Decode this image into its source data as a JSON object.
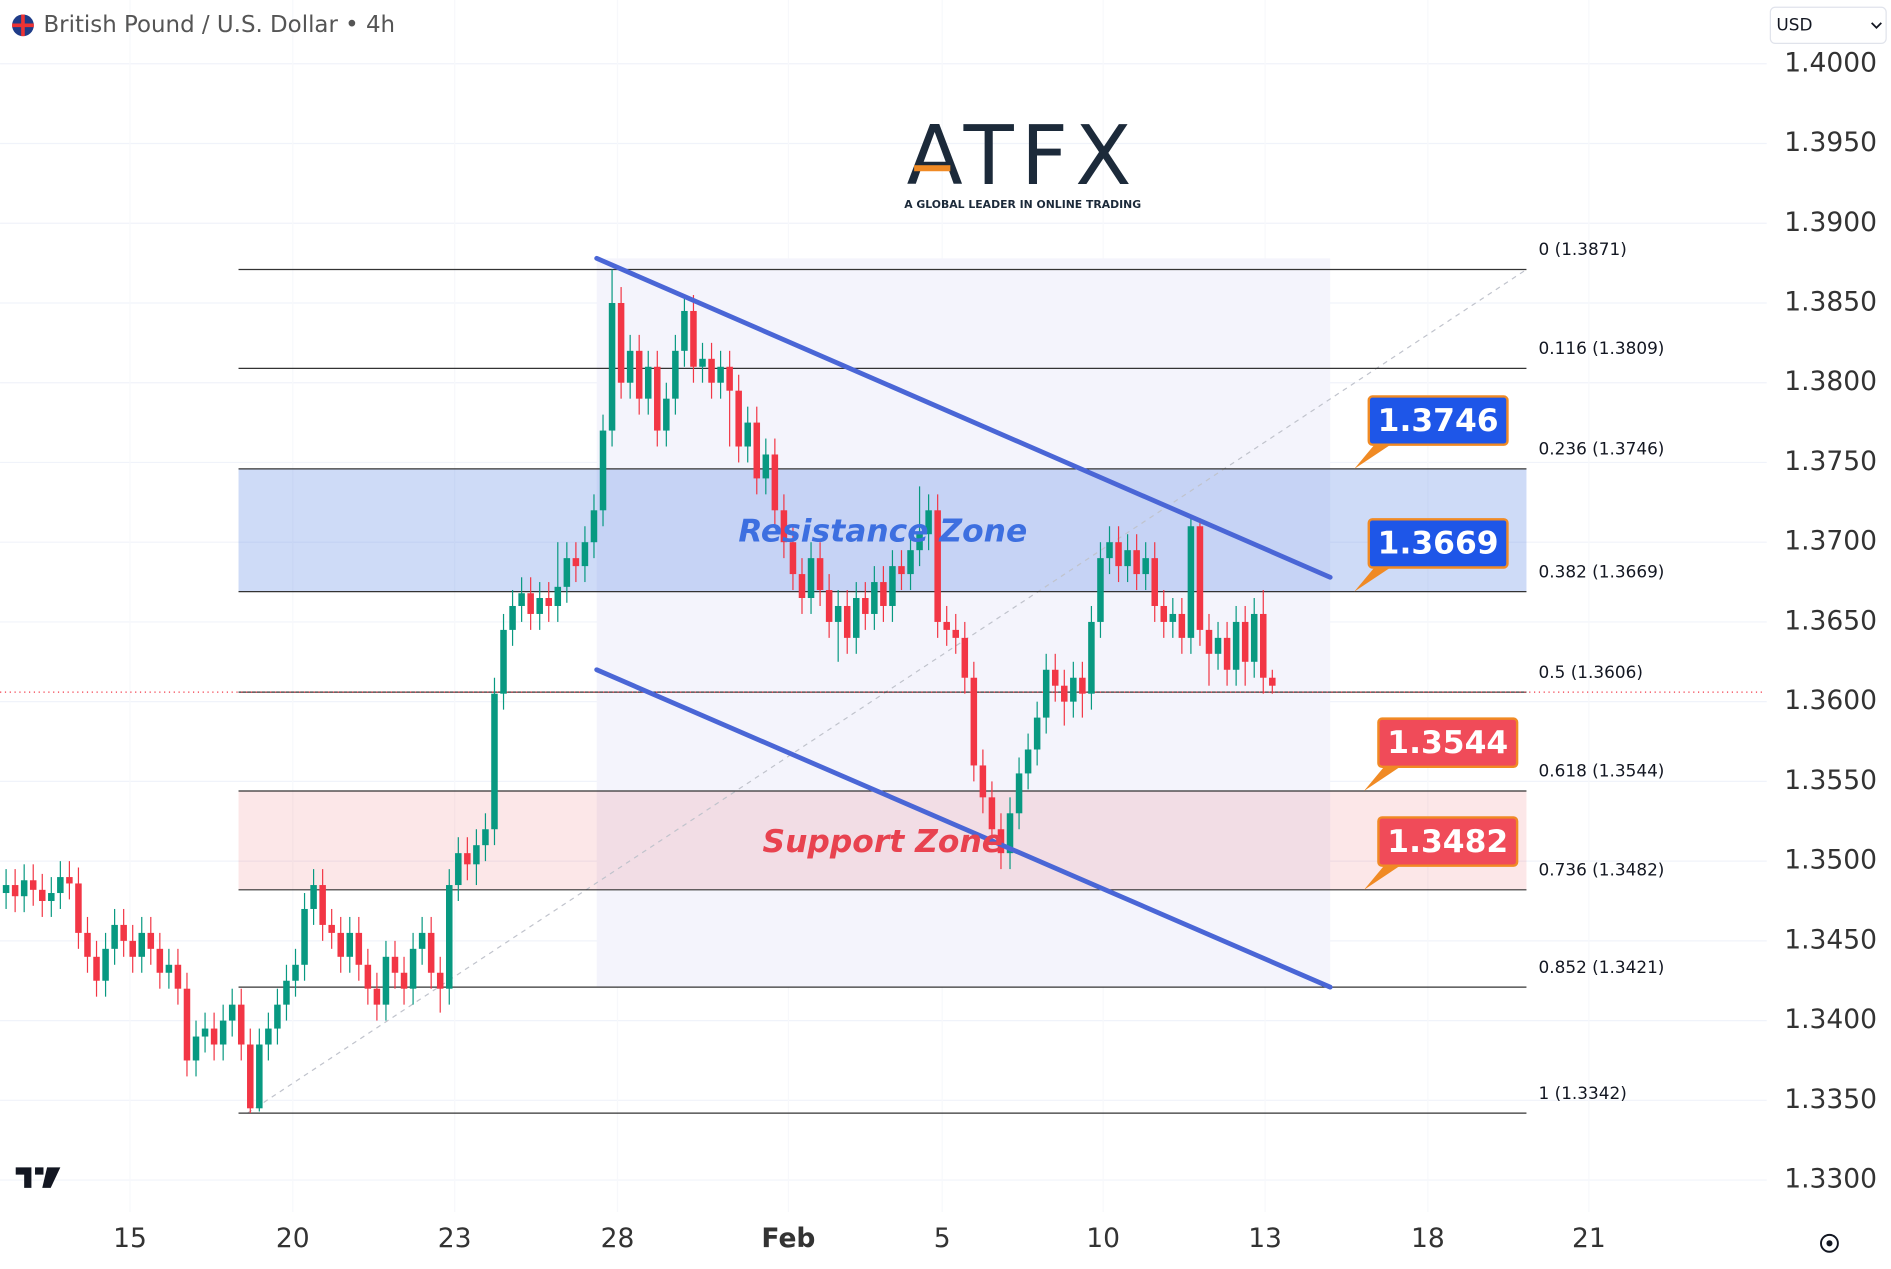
{
  "chart_data": {
    "type": "candlestick",
    "title": "British Pound / U.S. Dollar • 4h",
    "currency": "USD",
    "logo": {
      "name": "ATFX",
      "tagline": "A GLOBAL LEADER IN ONLINE TRADING"
    },
    "up_color": "#089981",
    "down_color": "#f23645",
    "ylim": [
      1.404,
      1.328
    ],
    "xlim": [
      -0.667,
      194.667
    ],
    "grid": true,
    "yticks": [
      {
        "value": 1.33,
        "label": "1.3300"
      },
      {
        "value": 1.335,
        "label": "1.3350"
      },
      {
        "value": 1.34,
        "label": "1.3400"
      },
      {
        "value": 1.345,
        "label": "1.3450"
      },
      {
        "value": 1.35,
        "label": "1.3500"
      },
      {
        "value": 1.355,
        "label": "1.3550"
      },
      {
        "value": 1.36,
        "label": "1.3600"
      },
      {
        "value": 1.365,
        "label": "1.3650"
      },
      {
        "value": 1.37,
        "label": "1.3700"
      },
      {
        "value": 1.375,
        "label": "1.3750"
      },
      {
        "value": 1.38,
        "label": "1.3800"
      },
      {
        "value": 1.385,
        "label": "1.3850"
      },
      {
        "value": 1.39,
        "label": "1.3900"
      },
      {
        "value": 1.395,
        "label": "1.3950"
      },
      {
        "value": 1.4,
        "label": "1.4000"
      }
    ],
    "xticks": [
      {
        "value": 13.7,
        "label": "15"
      },
      {
        "value": 31.7,
        "label": "20"
      },
      {
        "value": 49.6,
        "label": "23"
      },
      {
        "value": 67.6,
        "label": "28"
      },
      {
        "value": 86.5,
        "label": "Feb"
      },
      {
        "value": 103.5,
        "label": "5"
      },
      {
        "value": 121.3,
        "label": "10"
      },
      {
        "value": 139.2,
        "label": "13"
      },
      {
        "value": 157.2,
        "label": "18"
      },
      {
        "value": 175,
        "label": "21"
      }
    ],
    "open": [
      1.348,
      1.3485,
      1.3478,
      1.3488,
      1.3482,
      1.3475,
      1.348,
      1.349,
      1.3486,
      1.3455,
      1.344,
      1.3425,
      1.3445,
      1.346,
      1.345,
      1.344,
      1.3455,
      1.3445,
      1.343,
      1.3435,
      1.342,
      1.3375,
      1.339,
      1.3395,
      1.3385,
      1.34,
      1.341,
      1.3385,
      1.3345,
      1.3385,
      1.3395,
      1.341,
      1.3425,
      1.3435,
      1.347,
      1.3485,
      1.346,
      1.3455,
      1.344,
      1.3455,
      1.3435,
      1.342,
      1.341,
      1.344,
      1.343,
      1.342,
      1.3445,
      1.3455,
      1.343,
      1.342,
      1.3485,
      1.3505,
      1.3498,
      1.351,
      1.352,
      1.3605,
      1.3645,
      1.366,
      1.3668,
      1.3655,
      1.3665,
      1.366,
      1.3672,
      1.369,
      1.3685,
      1.37,
      1.372,
      1.377,
      1.385,
      1.38,
      1.382,
      1.379,
      1.381,
      1.377,
      1.379,
      1.382,
      1.3845,
      1.381,
      1.3815,
      1.38,
      1.381,
      1.3795,
      1.376,
      1.3775,
      1.374,
      1.3755,
      1.372,
      1.37,
      1.368,
      1.3665,
      1.369,
      1.367,
      1.365,
      1.366,
      1.364,
      1.3665,
      1.3655,
      1.3675,
      1.366,
      1.3685,
      1.368,
      1.3695,
      1.3705,
      1.372,
      1.365,
      1.3645,
      1.364,
      1.3615,
      1.356,
      1.354,
      1.352,
      1.3505,
      1.353,
      1.3555,
      1.357,
      1.359,
      1.362,
      1.361,
      1.36,
      1.3615,
      1.3605,
      1.365,
      1.369,
      1.37,
      1.3685,
      1.3695,
      1.368,
      1.369,
      1.366,
      1.365,
      1.3655,
      1.364,
      1.371,
      1.3645,
      1.363,
      1.364,
      1.362,
      1.365,
      1.3625,
      1.3655,
      1.3615
    ],
    "high": [
      1.3495,
      1.3495,
      1.3498,
      1.3498,
      1.3492,
      1.349,
      1.35,
      1.35,
      1.3496,
      1.3465,
      1.345,
      1.3455,
      1.347,
      1.347,
      1.346,
      1.3465,
      1.3465,
      1.3455,
      1.3445,
      1.3445,
      1.343,
      1.34,
      1.3405,
      1.3405,
      1.341,
      1.342,
      1.342,
      1.3395,
      1.3395,
      1.3405,
      1.342,
      1.3435,
      1.3445,
      1.348,
      1.3495,
      1.3495,
      1.347,
      1.3465,
      1.3465,
      1.3465,
      1.3445,
      1.343,
      1.345,
      1.345,
      1.344,
      1.3455,
      1.3465,
      1.3465,
      1.344,
      1.3495,
      1.3515,
      1.3515,
      1.352,
      1.353,
      1.3615,
      1.3655,
      1.367,
      1.3678,
      1.3678,
      1.3675,
      1.3675,
      1.37,
      1.37,
      1.37,
      1.371,
      1.373,
      1.378,
      1.3871,
      1.386,
      1.383,
      1.383,
      1.382,
      1.382,
      1.38,
      1.383,
      1.3855,
      1.3855,
      1.3825,
      1.3825,
      1.382,
      1.382,
      1.3805,
      1.3785,
      1.3785,
      1.3765,
      1.3765,
      1.373,
      1.371,
      1.369,
      1.37,
      1.37,
      1.368,
      1.367,
      1.367,
      1.3675,
      1.3675,
      1.3685,
      1.3685,
      1.3695,
      1.3695,
      1.3705,
      1.3735,
      1.373,
      1.373,
      1.366,
      1.3655,
      1.365,
      1.3625,
      1.357,
      1.355,
      1.353,
      1.354,
      1.3565,
      1.358,
      1.36,
      1.363,
      1.363,
      1.362,
      1.3625,
      1.3625,
      1.366,
      1.37,
      1.371,
      1.371,
      1.3705,
      1.3705,
      1.37,
      1.37,
      1.367,
      1.3665,
      1.3665,
      1.3715,
      1.3715,
      1.3655,
      1.365,
      1.365,
      1.366,
      1.366,
      1.3665,
      1.367,
      1.362
    ],
    "low": [
      1.347,
      1.3468,
      1.3468,
      1.3472,
      1.3465,
      1.3465,
      1.347,
      1.3476,
      1.3445,
      1.343,
      1.3415,
      1.3415,
      1.3435,
      1.344,
      1.343,
      1.343,
      1.3435,
      1.342,
      1.342,
      1.341,
      1.3365,
      1.3365,
      1.338,
      1.3375,
      1.3375,
      1.339,
      1.3375,
      1.3342,
      1.3343,
      1.3375,
      1.3385,
      1.34,
      1.3415,
      1.3425,
      1.346,
      1.345,
      1.3445,
      1.343,
      1.343,
      1.3425,
      1.341,
      1.34,
      1.34,
      1.342,
      1.341,
      1.341,
      1.3435,
      1.342,
      1.3405,
      1.341,
      1.3475,
      1.3488,
      1.3485,
      1.35,
      1.351,
      1.3595,
      1.3635,
      1.365,
      1.3645,
      1.3645,
      1.365,
      1.365,
      1.3662,
      1.3675,
      1.3675,
      1.369,
      1.371,
      1.376,
      1.379,
      1.379,
      1.378,
      1.378,
      1.376,
      1.376,
      1.378,
      1.381,
      1.38,
      1.38,
      1.379,
      1.379,
      1.376,
      1.375,
      1.375,
      1.373,
      1.373,
      1.371,
      1.369,
      1.367,
      1.3655,
      1.3655,
      1.366,
      1.364,
      1.3625,
      1.363,
      1.363,
      1.3645,
      1.3645,
      1.365,
      1.365,
      1.367,
      1.367,
      1.3685,
      1.3695,
      1.364,
      1.3635,
      1.363,
      1.3605,
      1.355,
      1.353,
      1.351,
      1.3495,
      1.3495,
      1.352,
      1.3545,
      1.356,
      1.358,
      1.36,
      1.3585,
      1.359,
      1.359,
      1.3595,
      1.364,
      1.368,
      1.3675,
      1.3675,
      1.367,
      1.367,
      1.365,
      1.364,
      1.364,
      1.363,
      1.363,
      1.3635,
      1.361,
      1.362,
      1.361,
      1.361,
      1.361,
      1.3615,
      1.3605,
      1.3605
    ],
    "close": [
      1.3485,
      1.3478,
      1.3488,
      1.3482,
      1.3475,
      1.348,
      1.349,
      1.3486,
      1.3455,
      1.344,
      1.3425,
      1.3445,
      1.346,
      1.345,
      1.344,
      1.3455,
      1.3445,
      1.343,
      1.3435,
      1.342,
      1.3375,
      1.339,
      1.3395,
      1.3385,
      1.34,
      1.341,
      1.3385,
      1.3345,
      1.3385,
      1.3395,
      1.341,
      1.3425,
      1.3435,
      1.347,
      1.3485,
      1.346,
      1.3455,
      1.344,
      1.3455,
      1.3435,
      1.342,
      1.341,
      1.344,
      1.343,
      1.342,
      1.3445,
      1.3455,
      1.343,
      1.342,
      1.3485,
      1.3505,
      1.3498,
      1.351,
      1.352,
      1.3605,
      1.3645,
      1.366,
      1.3668,
      1.3655,
      1.3665,
      1.366,
      1.3672,
      1.369,
      1.3685,
      1.37,
      1.372,
      1.377,
      1.385,
      1.38,
      1.382,
      1.379,
      1.381,
      1.377,
      1.379,
      1.382,
      1.3845,
      1.381,
      1.3815,
      1.38,
      1.381,
      1.3795,
      1.376,
      1.3775,
      1.374,
      1.3755,
      1.372,
      1.37,
      1.368,
      1.3665,
      1.369,
      1.367,
      1.365,
      1.366,
      1.364,
      1.3665,
      1.3655,
      1.3675,
      1.366,
      1.3685,
      1.368,
      1.3695,
      1.3705,
      1.372,
      1.365,
      1.3645,
      1.364,
      1.3615,
      1.356,
      1.354,
      1.352,
      1.3505,
      1.353,
      1.3555,
      1.357,
      1.359,
      1.362,
      1.361,
      1.36,
      1.3615,
      1.3605,
      1.365,
      1.369,
      1.37,
      1.3685,
      1.3695,
      1.368,
      1.369,
      1.366,
      1.365,
      1.3655,
      1.364,
      1.371,
      1.3645,
      1.363,
      1.364,
      1.362,
      1.365,
      1.3625,
      1.3655,
      1.3615,
      1.361
    ],
    "last_price": 1.3606,
    "fib": {
      "span": [
        25.7,
        168.1
      ],
      "anchor": [
        [
          26.7,
          1.3342
        ],
        [
          168.1,
          1.3871
        ]
      ],
      "levels": [
        {
          "value": 1.3871,
          "label": "0 (1.3871)"
        },
        {
          "value": 1.3809,
          "label": "0.116 (1.3809)"
        },
        {
          "value": 1.3746,
          "label": "0.236 (1.3746)"
        },
        {
          "value": 1.3669,
          "label": "0.382 (1.3669)"
        },
        {
          "value": 1.3606,
          "label": "0.5 (1.3606)"
        },
        {
          "value": 1.3544,
          "label": "0.618 (1.3544)"
        },
        {
          "value": 1.3482,
          "label": "0.736 (1.3482)"
        },
        {
          "value": 1.3421,
          "label": "0.852 (1.3421)"
        },
        {
          "value": 1.3342,
          "label": "1 (1.3342)"
        }
      ]
    },
    "zones": [
      {
        "label": "Resistance Zone",
        "from": 1.3669,
        "to": 1.3746,
        "color": "#3d6fe0"
      },
      {
        "label": "Support Zone",
        "from": 1.3482,
        "to": 1.3544,
        "color": "#e8424f"
      }
    ],
    "channel": {
      "color": "#4a66d6",
      "upper": [
        [
          65.3,
          1.3878
        ],
        [
          146.4,
          1.3678
        ]
      ],
      "lower": [
        [
          65.3,
          1.362
        ],
        [
          146.4,
          1.3421
        ]
      ]
    },
    "price_tags": [
      {
        "value": 1.3746,
        "label": "1.3746",
        "color": "#1e56e8"
      },
      {
        "value": 1.3669,
        "label": "1.3669",
        "color": "#1e56e8"
      },
      {
        "value": 1.3544,
        "label": "1.3544",
        "color": "#f04b59"
      },
      {
        "value": 1.3482,
        "label": "1.3482",
        "color": "#f04b59"
      }
    ]
  }
}
